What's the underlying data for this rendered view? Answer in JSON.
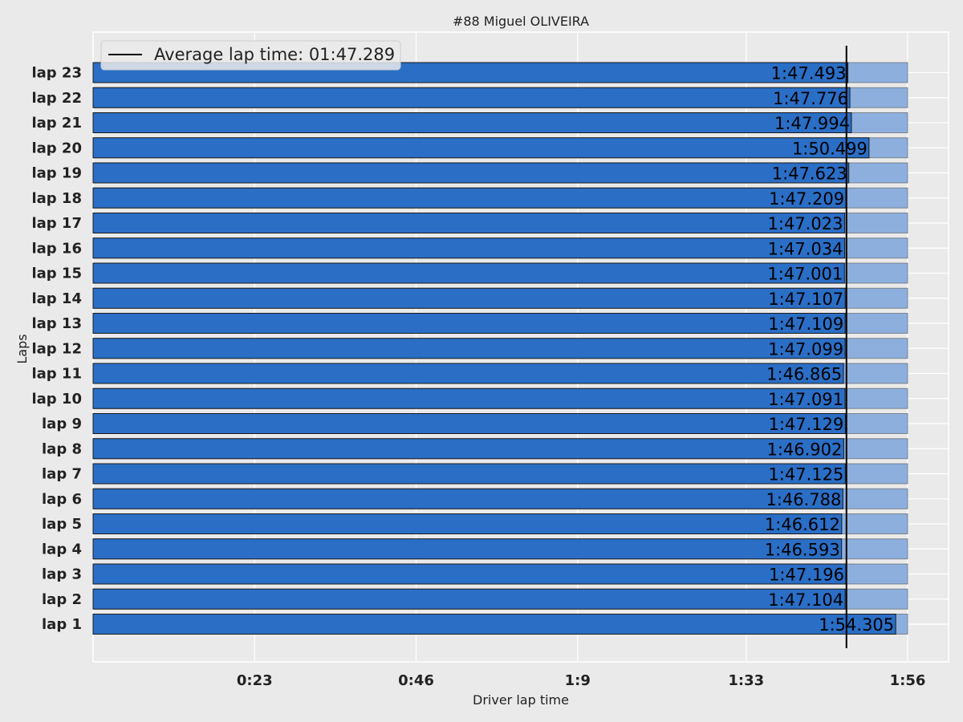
{
  "chart_data": {
    "type": "bar",
    "orientation": "horizontal",
    "title": "#88  Miguel OLIVEIRA",
    "xlabel": "Driver lap time",
    "ylabel": "Laps",
    "categories": [
      "lap 1",
      "lap 2",
      "lap 3",
      "lap 4",
      "lap 5",
      "lap 6",
      "lap 7",
      "lap 8",
      "lap 9",
      "lap 10",
      "lap 11",
      "lap 12",
      "lap 13",
      "lap 14",
      "lap 15",
      "lap 16",
      "lap 17",
      "lap 18",
      "lap 19",
      "lap 20",
      "lap 21",
      "lap 22",
      "lap 23"
    ],
    "values_seconds": [
      114.305,
      107.104,
      107.196,
      106.593,
      106.612,
      106.788,
      107.125,
      106.902,
      107.129,
      107.091,
      106.865,
      107.099,
      107.109,
      107.107,
      107.001,
      107.034,
      107.023,
      107.209,
      107.623,
      110.499,
      107.994,
      107.776,
      107.493
    ],
    "value_labels": [
      "1:54.305",
      "1:47.104",
      "1:47.196",
      "1:46.593",
      "1:46.612",
      "1:46.788",
      "1:47.125",
      "1:46.902",
      "1:47.129",
      "1:47.091",
      "1:46.865",
      "1:47.099",
      "1:47.109",
      "1:47.107",
      "1:47.001",
      "1:47.034",
      "1:47.023",
      "1:47.209",
      "1:47.623",
      "1:50.499",
      "1:47.994",
      "1:47.776",
      "1:47.493"
    ],
    "background_max_seconds": 116,
    "xticks_seconds": [
      23,
      46,
      69,
      93,
      116
    ],
    "xtick_labels": [
      "0:23",
      "0:46",
      "1:9",
      "1:33",
      "1:56"
    ],
    "xlim_seconds": [
      0,
      119
    ],
    "average_seconds": 107.289,
    "legend": {
      "label": "Average lap time: 01:47.289",
      "position": "top-left"
    },
    "grid": true,
    "colors": {
      "bar": "#2a6ec6",
      "background_bar": "#8dafdd",
      "average_line": "#000000",
      "plot_background": "#eaeaea",
      "grid": "#ffffff"
    }
  }
}
